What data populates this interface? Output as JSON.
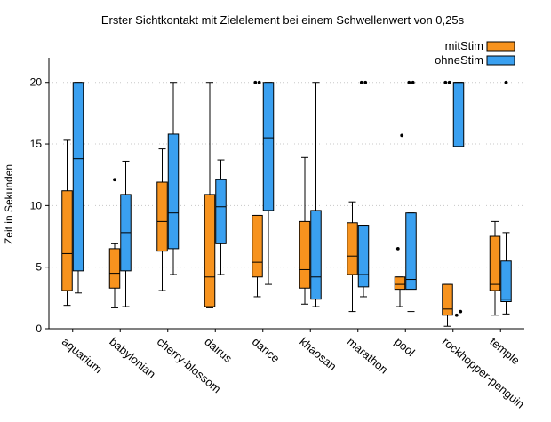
{
  "chart_data": {
    "type": "box",
    "title": "Erster Sichtkontakt mit Zielelement bei einem Schwellenwert von 0,25s",
    "xlabel": "",
    "ylabel": "Zeit in Sekunden",
    "ylim": [
      0,
      22
    ],
    "yticks": [
      0,
      5,
      10,
      15,
      20
    ],
    "grid": true,
    "legend_position": "top-right",
    "categories": [
      "aquarium",
      "babylonian",
      "cherry-blossom",
      "dairus",
      "dance",
      "khaosan",
      "marathon",
      "pool",
      "rockhopper-penguin",
      "temple"
    ],
    "series": [
      {
        "name": "mitStim",
        "color": "#f7931e",
        "boxes": [
          {
            "whisker_low": 1.9,
            "q1": 3.1,
            "median": 6.1,
            "q3": 11.2,
            "whisker_high": 15.3,
            "outliers": []
          },
          {
            "whisker_low": 1.7,
            "q1": 3.3,
            "median": 4.5,
            "q3": 6.5,
            "whisker_high": 6.9,
            "outliers": [
              12.1
            ]
          },
          {
            "whisker_low": 3.1,
            "q1": 6.3,
            "median": 8.7,
            "q3": 11.9,
            "whisker_high": 14.6,
            "outliers": []
          },
          {
            "whisker_low": 1.7,
            "q1": 1.8,
            "median": 4.2,
            "q3": 10.9,
            "whisker_high": 20.0,
            "outliers": []
          },
          {
            "whisker_low": 2.6,
            "q1": 4.2,
            "median": 5.4,
            "q3": 9.2,
            "whisker_high": 9.2,
            "outliers": [
              20.0,
              20.0
            ]
          },
          {
            "whisker_low": 2.0,
            "q1": 3.3,
            "median": 4.8,
            "q3": 8.7,
            "whisker_high": 13.9,
            "outliers": []
          },
          {
            "whisker_low": 1.4,
            "q1": 4.4,
            "median": 5.9,
            "q3": 8.6,
            "whisker_high": 10.3,
            "outliers": []
          },
          {
            "whisker_low": 1.8,
            "q1": 3.2,
            "median": 3.6,
            "q3": 4.2,
            "whisker_high": 4.2,
            "outliers": [
              6.5,
              15.7
            ]
          },
          {
            "whisker_low": 0.2,
            "q1": 1.1,
            "median": 1.6,
            "q3": 3.6,
            "whisker_high": 3.6,
            "outliers": [
              20.0,
              20.0
            ]
          },
          {
            "whisker_low": 1.1,
            "q1": 3.1,
            "median": 3.6,
            "q3": 7.5,
            "whisker_high": 8.7,
            "outliers": []
          }
        ]
      },
      {
        "name": "ohneStim",
        "color": "#3aa0f0",
        "boxes": [
          {
            "whisker_low": 2.9,
            "q1": 4.7,
            "median": 13.8,
            "q3": 20.0,
            "whisker_high": 20.0,
            "outliers": []
          },
          {
            "whisker_low": 1.8,
            "q1": 4.7,
            "median": 7.8,
            "q3": 10.9,
            "whisker_high": 13.6,
            "outliers": []
          },
          {
            "whisker_low": 4.4,
            "q1": 6.5,
            "median": 9.4,
            "q3": 15.8,
            "whisker_high": 20.0,
            "outliers": []
          },
          {
            "whisker_low": 4.4,
            "q1": 6.9,
            "median": 9.9,
            "q3": 12.1,
            "whisker_high": 13.7,
            "outliers": []
          },
          {
            "whisker_low": 3.6,
            "q1": 9.6,
            "median": 15.5,
            "q3": 20.0,
            "whisker_high": 20.0,
            "outliers": []
          },
          {
            "whisker_low": 1.8,
            "q1": 2.4,
            "median": 4.2,
            "q3": 9.6,
            "whisker_high": 20.0,
            "outliers": []
          },
          {
            "whisker_low": 2.6,
            "q1": 3.4,
            "median": 4.4,
            "q3": 8.4,
            "whisker_high": 8.4,
            "outliers": [
              20.0,
              20.0
            ]
          },
          {
            "whisker_low": 1.4,
            "q1": 3.2,
            "median": 4.0,
            "q3": 9.4,
            "whisker_high": 9.4,
            "outliers": [
              20.0,
              20.0
            ]
          },
          {
            "whisker_low": 14.8,
            "q1": 14.8,
            "median": 20.0,
            "q3": 20.0,
            "whisker_high": 20.0,
            "outliers": [
              1.1,
              1.4
            ]
          },
          {
            "whisker_low": 1.2,
            "q1": 2.2,
            "median": 2.4,
            "q3": 5.5,
            "whisker_high": 7.8,
            "outliers": [
              20.0
            ]
          }
        ]
      }
    ]
  }
}
